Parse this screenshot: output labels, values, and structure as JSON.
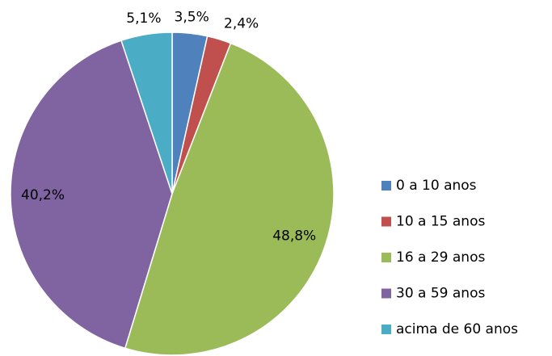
{
  "chart_data": {
    "type": "pie",
    "categories": [
      "0 a 10 anos",
      "10 a 15 anos",
      "16 a 29 anos",
      "30 a 59 anos",
      "acima de 60 anos"
    ],
    "values": [
      3.5,
      2.4,
      48.8,
      40.2,
      5.1
    ],
    "value_labels": [
      "3,5%",
      "2,4%",
      "48,8%",
      "40,2%",
      "5,1%"
    ],
    "colors": [
      "#4f81bd",
      "#c0504d",
      "#9bbb59",
      "#8064a2",
      "#4bacc6"
    ],
    "legend": "right"
  }
}
